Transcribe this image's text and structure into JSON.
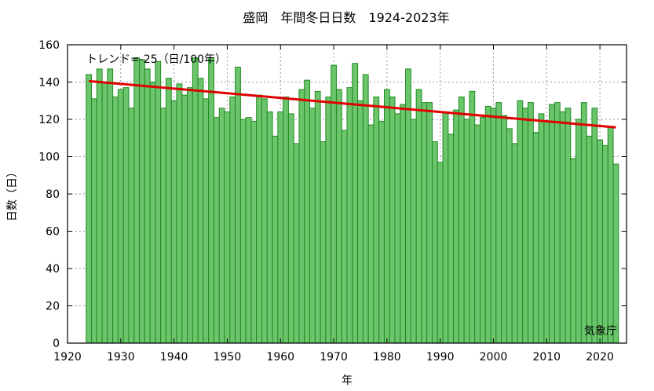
{
  "chart_data": {
    "type": "bar",
    "title": "盛岡　年間冬日日数　1924-2023年",
    "xlabel": "年",
    "ylabel": "日数（日）",
    "xlim": [
      1920,
      2025
    ],
    "ylim": [
      0,
      160
    ],
    "xticks": [
      1920,
      1930,
      1940,
      1950,
      1960,
      1970,
      1980,
      1990,
      2000,
      2010,
      2020
    ],
    "yticks": [
      0,
      20,
      40,
      60,
      80,
      100,
      120,
      140,
      160
    ],
    "grid": true,
    "x": [
      1924,
      1925,
      1926,
      1927,
      1928,
      1929,
      1930,
      1931,
      1932,
      1933,
      1934,
      1935,
      1936,
      1937,
      1938,
      1939,
      1940,
      1941,
      1942,
      1943,
      1944,
      1945,
      1946,
      1947,
      1948,
      1949,
      1950,
      1951,
      1952,
      1953,
      1954,
      1955,
      1956,
      1957,
      1958,
      1959,
      1960,
      1961,
      1962,
      1963,
      1964,
      1965,
      1966,
      1967,
      1968,
      1969,
      1970,
      1971,
      1972,
      1973,
      1974,
      1975,
      1976,
      1977,
      1978,
      1979,
      1980,
      1981,
      1982,
      1983,
      1984,
      1985,
      1986,
      1987,
      1988,
      1989,
      1990,
      1991,
      1992,
      1993,
      1994,
      1995,
      1996,
      1997,
      1998,
      1999,
      2000,
      2001,
      2002,
      2003,
      2004,
      2005,
      2006,
      2007,
      2008,
      2009,
      2010,
      2011,
      2012,
      2013,
      2014,
      2015,
      2016,
      2017,
      2018,
      2019,
      2020,
      2021,
      2022,
      2023
    ],
    "values": [
      144,
      131,
      147,
      140,
      147,
      132,
      136,
      137,
      126,
      153,
      152,
      147,
      140,
      151,
      126,
      142,
      130,
      139,
      133,
      137,
      153,
      142,
      131,
      153,
      121,
      126,
      124,
      132,
      148,
      120,
      121,
      119,
      133,
      131,
      124,
      111,
      124,
      132,
      123,
      107,
      136,
      141,
      126,
      135,
      108,
      132,
      149,
      136,
      114,
      137,
      150,
      130,
      144,
      117,
      132,
      119,
      136,
      132,
      123,
      128,
      147,
      120,
      136,
      129,
      129,
      108,
      97,
      124,
      112,
      125,
      132,
      120,
      135,
      117,
      121,
      127,
      126,
      129,
      122,
      115,
      107,
      130,
      126,
      129,
      113,
      123,
      119,
      128,
      129,
      124,
      126,
      99,
      120,
      129,
      111,
      126,
      109,
      106,
      116,
      96
    ],
    "trend": {
      "label": "トレンド=-25（日/100年）",
      "start": [
        1924,
        140.5
      ],
      "end": [
        2023,
        115.7
      ]
    },
    "source": "気象庁"
  }
}
